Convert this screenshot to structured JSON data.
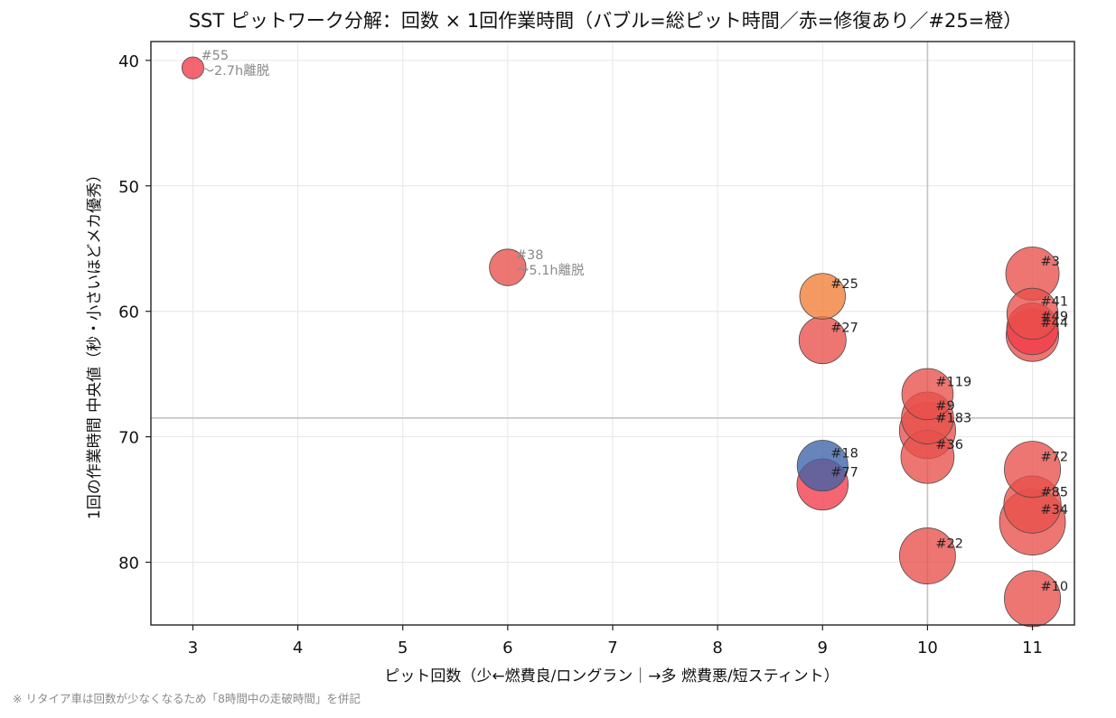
{
  "chart_data": {
    "type": "scatter",
    "title": "SST ピットワーク分解：回数 × 1回作業時間（バブル=総ピット時間／赤=修復あり／#25=橙）",
    "xlabel": "ピット回数（少←燃費良/ロングラン｜→多 燃費悪/短スティント）",
    "ylabel": "1回の作業時間 中央値（秒・小さいほどメカ優秀）",
    "xlim": [
      2.6,
      11.4
    ],
    "ylim": [
      85,
      38.5
    ],
    "y_inverted": true,
    "xticks": [
      3,
      4,
      5,
      6,
      7,
      8,
      9,
      10,
      11
    ],
    "yticks": [
      40,
      50,
      60,
      70,
      80
    ],
    "grid": true,
    "reference_lines": {
      "x": 10,
      "y": 68.5
    },
    "colors": {
      "repair": "#e8504a",
      "team25": "#f07c35",
      "normal": "#3e63a8",
      "red_bright": "#f23a4a"
    },
    "points": [
      {
        "label": "#55",
        "x": 3,
        "y": 40.6,
        "total_pit": 122,
        "color": "red_bright",
        "note": "〜2.7h離脱"
      },
      {
        "label": "#38",
        "x": 6,
        "y": 56.5,
        "total_pit": 339,
        "color": "repair",
        "note": "〜5.1h離脱"
      },
      {
        "label": "#25",
        "x": 9,
        "y": 58.8,
        "total_pit": 529,
        "color": "team25"
      },
      {
        "label": "#27",
        "x": 9,
        "y": 62.3,
        "total_pit": 561,
        "color": "repair"
      },
      {
        "label": "#18",
        "x": 9,
        "y": 72.3,
        "total_pit": 651,
        "color": "normal"
      },
      {
        "label": "#77",
        "x": 9,
        "y": 73.8,
        "total_pit": 664,
        "color": "red_bright"
      },
      {
        "label": "#119",
        "x": 10,
        "y": 66.6,
        "total_pit": 666,
        "color": "repair"
      },
      {
        "label": "#9",
        "x": 10,
        "y": 68.5,
        "total_pit": 685,
        "color": "repair"
      },
      {
        "label": "#183",
        "x": 10,
        "y": 69.5,
        "total_pit": 800,
        "color": "repair"
      },
      {
        "label": "#36",
        "x": 10,
        "y": 71.6,
        "total_pit": 716,
        "color": "repair"
      },
      {
        "label": "#22",
        "x": 10,
        "y": 79.5,
        "total_pit": 795,
        "color": "repair"
      },
      {
        "label": "#3",
        "x": 11,
        "y": 57.0,
        "total_pit": 720,
        "color": "repair"
      },
      {
        "label": "#41",
        "x": 11,
        "y": 60.2,
        "total_pit": 662,
        "color": "repair"
      },
      {
        "label": "#49",
        "x": 11,
        "y": 61.4,
        "total_pit": 675,
        "color": "red_bright"
      },
      {
        "label": "#44",
        "x": 11,
        "y": 61.9,
        "total_pit": 700,
        "color": "repair"
      },
      {
        "label": "#72",
        "x": 11,
        "y": 72.6,
        "total_pit": 799,
        "color": "repair"
      },
      {
        "label": "#85",
        "x": 11,
        "y": 75.4,
        "total_pit": 829,
        "color": "repair"
      },
      {
        "label": "#34",
        "x": 11,
        "y": 76.8,
        "total_pit": 1100,
        "color": "repair"
      },
      {
        "label": "#10",
        "x": 11,
        "y": 82.9,
        "total_pit": 800,
        "color": "repair"
      }
    ]
  },
  "footnote": "※ リタイア車は回数が少なくなるため「8時間中の走破時間」を併記"
}
